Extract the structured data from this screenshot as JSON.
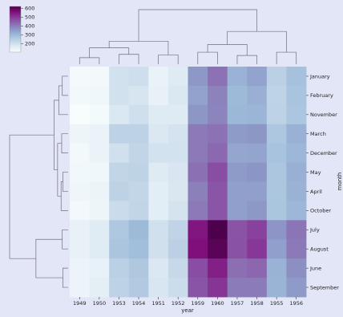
{
  "chart_data": {
    "type": "heatmap",
    "title": "",
    "xlabel": "year",
    "ylabel": "month",
    "columns": [
      "1949",
      "1950",
      "1953",
      "1954",
      "1951",
      "1952",
      "1959",
      "1960",
      "1957",
      "1958",
      "1955",
      "1956"
    ],
    "rows": [
      "January",
      "February",
      "November",
      "March",
      "December",
      "May",
      "April",
      "October",
      "July",
      "August",
      "June",
      "September"
    ],
    "values": [
      [
        112,
        115,
        196,
        204,
        145,
        171,
        360,
        417,
        315,
        340,
        242,
        284
      ],
      [
        118,
        126,
        196,
        188,
        150,
        180,
        342,
        391,
        301,
        318,
        233,
        277
      ],
      [
        104,
        114,
        180,
        203,
        172,
        172,
        362,
        390,
        305,
        310,
        237,
        271
      ],
      [
        132,
        141,
        236,
        235,
        178,
        193,
        406,
        419,
        356,
        362,
        267,
        317
      ],
      [
        118,
        140,
        201,
        229,
        194,
        194,
        405,
        432,
        336,
        337,
        278,
        306
      ],
      [
        121,
        125,
        229,
        234,
        172,
        183,
        420,
        472,
        355,
        363,
        270,
        318
      ],
      [
        129,
        135,
        235,
        227,
        163,
        181,
        396,
        461,
        348,
        348,
        269,
        313
      ],
      [
        119,
        133,
        211,
        229,
        162,
        191,
        407,
        461,
        347,
        359,
        274,
        306
      ],
      [
        148,
        170,
        264,
        302,
        199,
        230,
        548,
        622,
        465,
        491,
        364,
        413
      ],
      [
        148,
        170,
        272,
        293,
        199,
        242,
        559,
        606,
        467,
        505,
        347,
        405
      ],
      [
        135,
        149,
        243,
        264,
        178,
        218,
        472,
        535,
        422,
        435,
        315,
        374
      ],
      [
        136,
        158,
        237,
        259,
        184,
        209,
        463,
        508,
        404,
        404,
        312,
        355
      ]
    ],
    "colorbar": {
      "ticks": [
        200,
        300,
        400,
        500,
        600
      ],
      "range": [
        104,
        622
      ],
      "colormap": "BuPu"
    },
    "legend": "top-left colorbar",
    "dendrograms": [
      "columns-top",
      "rows-left"
    ]
  }
}
